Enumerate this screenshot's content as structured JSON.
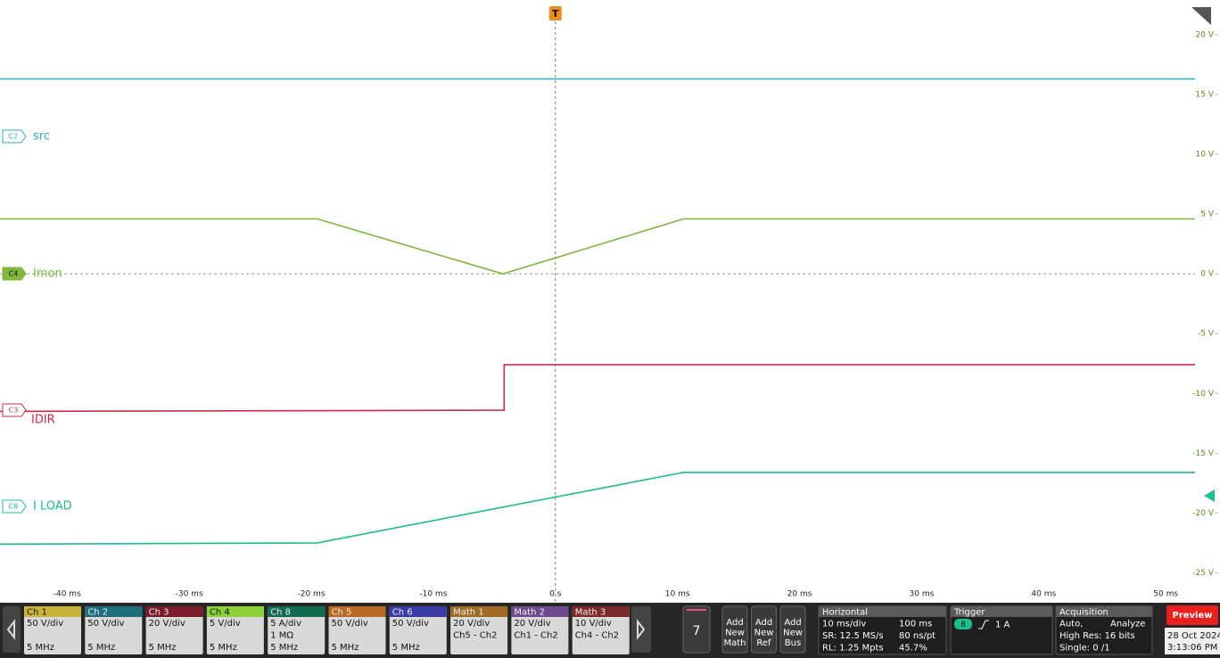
{
  "chart_data": {
    "type": "line",
    "trigger_marker": "T",
    "xlim": [
      -45.5,
      52.4
    ],
    "ylim": [
      -27.5,
      22.9
    ],
    "xticks": [
      {
        "value": -40,
        "label": "-40 ms"
      },
      {
        "value": -30,
        "label": "-30 ms"
      },
      {
        "value": -20,
        "label": "-20 ms"
      },
      {
        "value": -10,
        "label": "-10 ms"
      },
      {
        "value": 0,
        "label": "0 s"
      },
      {
        "value": 10,
        "label": "10 ms"
      },
      {
        "value": 20,
        "label": "20 ms"
      },
      {
        "value": 30,
        "label": "30 ms"
      },
      {
        "value": 40,
        "label": "40 ms"
      },
      {
        "value": 50,
        "label": "50 ms"
      }
    ],
    "yticks": [
      {
        "value": 20,
        "label": "20 V"
      },
      {
        "value": 15,
        "label": "15 V"
      },
      {
        "value": 10,
        "label": "10 V"
      },
      {
        "value": 5,
        "label": "5 V"
      },
      {
        "value": 0,
        "label": "0 V"
      },
      {
        "value": -5,
        "label": "-5 V"
      },
      {
        "value": -10,
        "label": "-10 V"
      },
      {
        "value": -15,
        "label": "-15 V"
      },
      {
        "value": -20,
        "label": "-20 V"
      },
      {
        "value": -25,
        "label": "-25 V"
      }
    ],
    "series": [
      {
        "badge": "C2",
        "name": "src",
        "color": "#27aec4",
        "x": [
          -45.5,
          52.4
        ],
        "values": [
          16.3,
          16.3
        ]
      },
      {
        "badge": "C4",
        "name": "Imon",
        "color": "#7fb83a",
        "x": [
          -45.5,
          -19.5,
          -4.3,
          10.5,
          52.4
        ],
        "values": [
          4.6,
          4.6,
          0.0,
          4.6,
          4.6
        ]
      },
      {
        "badge": "C3",
        "name": "IDIR",
        "color": "#d0284a",
        "x": [
          -45.5,
          -4.2,
          -4.2,
          52.4
        ],
        "values": [
          -11.5,
          -11.4,
          -7.6,
          -7.6
        ]
      },
      {
        "badge": "C8",
        "name": "I LOAD",
        "color": "#17c08e",
        "x": [
          -45.5,
          -19.5,
          10.5,
          52.4
        ],
        "values": [
          -22.6,
          -22.5,
          -16.6,
          -16.6
        ]
      }
    ]
  },
  "channel_bar": [
    {
      "label": "Ch 1",
      "color": "#c8b43a",
      "lines": [
        "50 V/div",
        "5 MHz"
      ]
    },
    {
      "label": "Ch 2",
      "color": "#1d6f7c",
      "lines": [
        "50 V/div",
        "5 MHz"
      ]
    },
    {
      "label": "Ch 3",
      "color": "#7a1c2c",
      "lines": [
        "20 V/div",
        "5 MHz"
      ]
    },
    {
      "label": "Ch 4",
      "color": "#8cd13a",
      "lines": [
        "5 V/div",
        "5 MHz"
      ]
    },
    {
      "label": "Ch 8",
      "color": "#136b50",
      "lines": [
        "5 A/div",
        "1 MΩ",
        "5 MHz"
      ]
    },
    {
      "label": "Ch 5",
      "color": "#b66a22",
      "lines": [
        "50 V/div",
        "5 MHz"
      ]
    },
    {
      "label": "Ch 6",
      "color": "#3b3ba6",
      "lines": [
        "50 V/div",
        "5 MHz"
      ]
    },
    {
      "label": "Math 1",
      "color": "#a06a24",
      "lines": [
        "20 V/div",
        "Ch5 - Ch2"
      ]
    },
    {
      "label": "Math 2",
      "color": "#6c4a8c",
      "lines": [
        "20 V/div",
        "Ch1 - Ch2"
      ]
    },
    {
      "label": "Math 3",
      "color": "#7c2a2a",
      "lines": [
        "10 V/div",
        "Ch4 - Ch2"
      ]
    }
  ],
  "waveform_button": "7",
  "add_buttons": [
    [
      "Add",
      "New",
      "Math"
    ],
    [
      "Add",
      "New",
      "Ref"
    ],
    [
      "Add",
      "New",
      "Bus"
    ]
  ],
  "horizontal": {
    "title": "Horizontal",
    "rows": [
      [
        "10 ms/div",
        "100 ms"
      ],
      [
        "SR: 12.5 MS/s",
        "80 ns/pt"
      ],
      [
        "RL: 1.25 Mpts",
        "45.7%"
      ]
    ]
  },
  "trigger": {
    "title": "Trigger",
    "source": "8",
    "level": "1 A"
  },
  "acquisition": {
    "title": "Acquisition",
    "rows": [
      [
        "Auto,",
        "Analyze"
      ],
      [
        "High Res: 16 bits"
      ],
      [
        "Single: 0 /1"
      ]
    ]
  },
  "preview": "Preview",
  "date": "28 Oct 2024",
  "time": "3:13:06 PM"
}
